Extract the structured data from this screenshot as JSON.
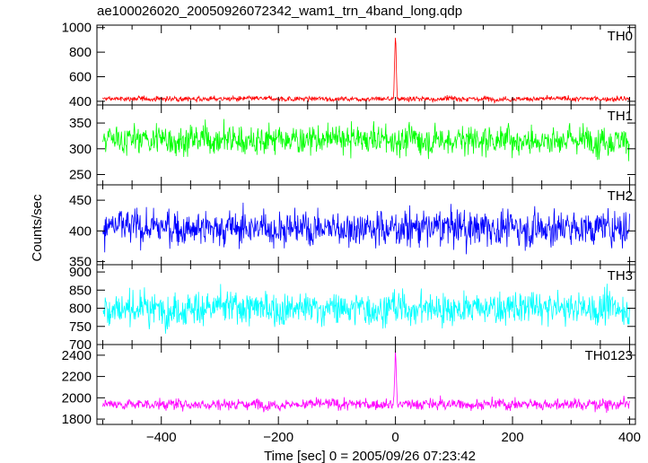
{
  "chart_data": {
    "type": "line",
    "title": "ae100026020_20050926072342_wam1_trn_4band_long.qdp",
    "xlabel": "Time [sec] 0 = 2005/09/26 07:23:42",
    "ylabel": "Counts/sec",
    "xlim": [
      -510,
      410
    ],
    "x_ticks": [
      -400,
      -200,
      0,
      200,
      400
    ],
    "x_tick_labels": [
      "−400",
      "−200",
      "0",
      "200",
      "400"
    ],
    "x_sample_range": [
      -500,
      400
    ],
    "panels": [
      {
        "name": "TH0",
        "color": "#ff0000",
        "ylim": [
          370,
          1020
        ],
        "y_ticks": [
          400,
          600,
          800,
          1000
        ],
        "y_tick_labels": [
          "400",
          "600",
          "800",
          "1000"
        ],
        "baseline": 420,
        "noise_amplitude": 18,
        "burst_time": 0,
        "burst_peak": 1000
      },
      {
        "name": "TH1",
        "color": "#00ff00",
        "ylim": [
          230,
          385
        ],
        "y_ticks": [
          250,
          300,
          350
        ],
        "y_tick_labels": [
          "250",
          "300",
          "350"
        ],
        "baseline": 318,
        "noise_amplitude": 25,
        "burst_time": 0,
        "burst_peak": 318
      },
      {
        "name": "TH2",
        "color": "#0000ff",
        "ylim": [
          345,
          475
        ],
        "y_ticks": [
          350,
          400,
          450
        ],
        "y_tick_labels": [
          "350",
          "400",
          "450"
        ],
        "baseline": 405,
        "noise_amplitude": 25,
        "burst_time": 0,
        "burst_peak": 405
      },
      {
        "name": "TH3",
        "color": "#00ffff",
        "ylim": [
          700,
          920
        ],
        "y_ticks": [
          700,
          750,
          800,
          850,
          900
        ],
        "y_tick_labels": [
          "700",
          "750",
          "800",
          "850",
          "900"
        ],
        "baseline": 800,
        "noise_amplitude": 38,
        "burst_time": 0,
        "burst_peak": 800
      },
      {
        "name": "TH0123",
        "color": "#ff00ff",
        "ylim": [
          1750,
          2500
        ],
        "y_ticks": [
          1800,
          2000,
          2200,
          2400
        ],
        "y_tick_labels": [
          "1800",
          "2000",
          "2200",
          "2400"
        ],
        "baseline": 1940,
        "noise_amplitude": 45,
        "burst_time": 0,
        "burst_peak": 2500
      }
    ]
  }
}
